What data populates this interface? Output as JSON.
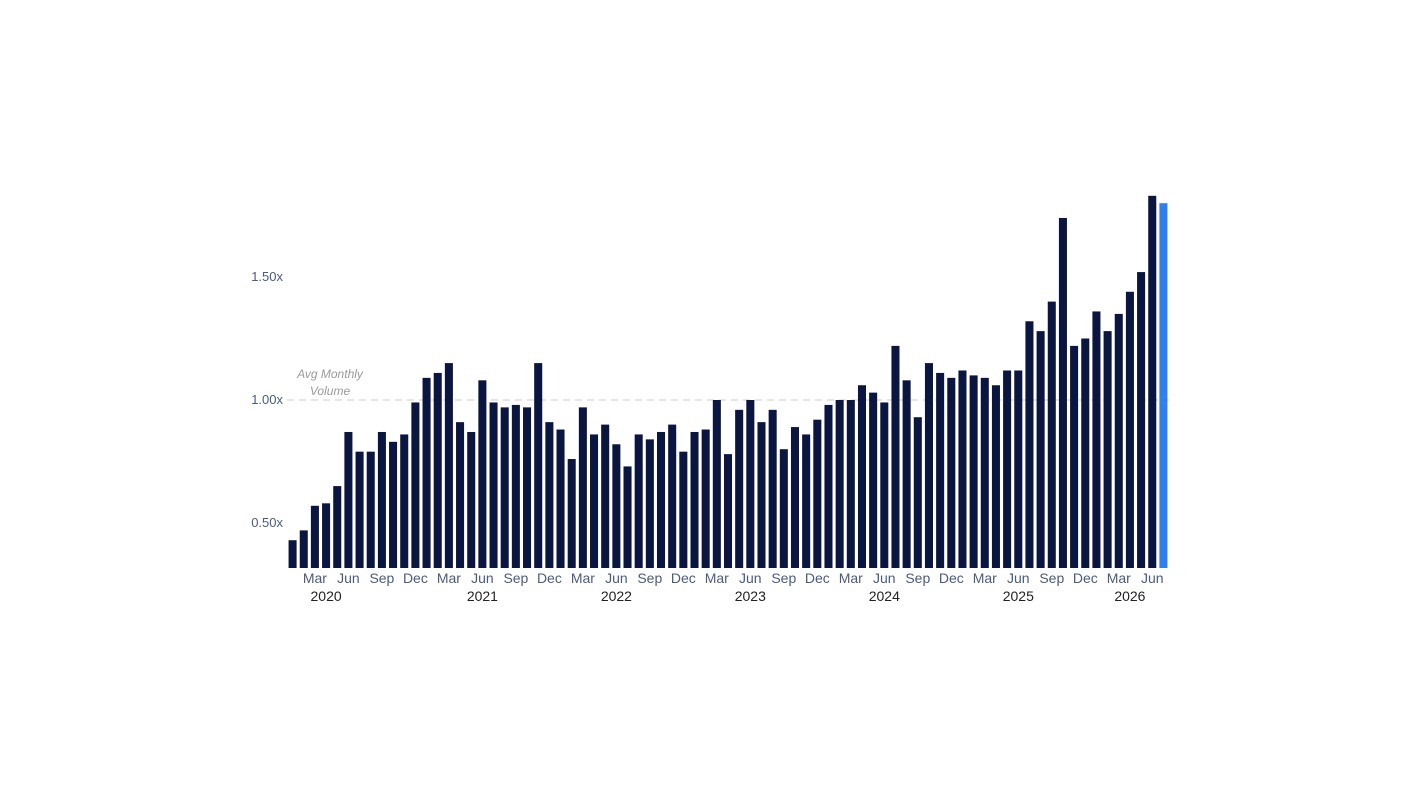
{
  "chart_data": {
    "type": "bar",
    "title": "",
    "xlabel": "",
    "ylabel": "",
    "yaxis": {
      "ticks": [
        {
          "value": 0.5,
          "label": "0.50x"
        },
        {
          "value": 1.0,
          "label": "1.00x"
        },
        {
          "value": 1.5,
          "label": "1.50x"
        }
      ],
      "range": [
        0.318,
        1.85
      ],
      "grid": false
    },
    "xaxis": {
      "month_ticks": [
        {
          "date": "2020-03",
          "label": "Mar"
        },
        {
          "date": "2020-06",
          "label": "Jun"
        },
        {
          "date": "2020-09",
          "label": "Sep"
        },
        {
          "date": "2020-12",
          "label": "Dec"
        },
        {
          "date": "2021-03",
          "label": "Mar"
        },
        {
          "date": "2021-06",
          "label": "Jun"
        },
        {
          "date": "2021-09",
          "label": "Sep"
        },
        {
          "date": "2021-12",
          "label": "Dec"
        },
        {
          "date": "2022-03",
          "label": "Mar"
        },
        {
          "date": "2022-06",
          "label": "Jun"
        },
        {
          "date": "2022-09",
          "label": "Sep"
        },
        {
          "date": "2022-12",
          "label": "Dec"
        },
        {
          "date": "2023-03",
          "label": "Mar"
        },
        {
          "date": "2023-06",
          "label": "Jun"
        },
        {
          "date": "2023-09",
          "label": "Sep"
        },
        {
          "date": "2023-12",
          "label": "Dec"
        },
        {
          "date": "2024-03",
          "label": "Mar"
        },
        {
          "date": "2024-06",
          "label": "Jun"
        },
        {
          "date": "2024-09",
          "label": "Sep"
        },
        {
          "date": "2024-12",
          "label": "Dec"
        },
        {
          "date": "2025-03",
          "label": "Mar"
        },
        {
          "date": "2025-06",
          "label": "Jun"
        },
        {
          "date": "2025-09",
          "label": "Sep"
        },
        {
          "date": "2025-12",
          "label": "Dec"
        },
        {
          "date": "2026-03",
          "label": "Mar"
        },
        {
          "date": "2026-06",
          "label": "Jun"
        }
      ],
      "year_ticks": [
        {
          "date": "2020-04",
          "label": "2020"
        },
        {
          "date": "2021-06",
          "label": "2021"
        },
        {
          "date": "2022-06",
          "label": "2022"
        },
        {
          "date": "2023-06",
          "label": "2023"
        },
        {
          "date": "2024-06",
          "label": "2024"
        },
        {
          "date": "2025-06",
          "label": "2025"
        },
        {
          "date": "2026-04",
          "label": "2026"
        }
      ]
    },
    "reference_line": {
      "value": 1.0,
      "label_line1": "Avg Monthly",
      "label_line2": "Volume",
      "style": "dashed"
    },
    "colors": {
      "bar": "#0b1640",
      "highlight": "#2f7ff0",
      "tick_text": "#4a5a80",
      "year_text": "#222222",
      "reference_line": "#d6d6d6",
      "reference_text": "#9a9a9a"
    },
    "x": [
      "2020-01",
      "2020-02",
      "2020-03",
      "2020-04",
      "2020-05",
      "2020-06",
      "2020-07",
      "2020-08",
      "2020-09",
      "2020-10",
      "2020-11",
      "2020-12",
      "2021-01",
      "2021-02",
      "2021-03",
      "2021-04",
      "2021-05",
      "2021-06",
      "2021-07",
      "2021-08",
      "2021-09",
      "2021-10",
      "2021-11",
      "2021-12",
      "2022-01",
      "2022-02",
      "2022-03",
      "2022-04",
      "2022-05",
      "2022-06",
      "2022-07",
      "2022-08",
      "2022-09",
      "2022-10",
      "2022-11",
      "2022-12",
      "2023-01",
      "2023-02",
      "2023-03",
      "2023-04",
      "2023-05",
      "2023-06",
      "2023-07",
      "2023-08",
      "2023-09",
      "2023-10",
      "2023-11",
      "2023-12",
      "2024-01",
      "2024-02",
      "2024-03",
      "2024-04",
      "2024-05",
      "2024-06",
      "2024-07",
      "2024-08",
      "2024-09",
      "2024-10",
      "2024-11",
      "2024-12",
      "2025-01",
      "2025-02",
      "2025-03",
      "2025-04",
      "2025-05",
      "2025-06",
      "2025-07",
      "2025-08",
      "2025-09",
      "2025-10",
      "2025-11",
      "2025-12",
      "2026-01",
      "2026-02",
      "2026-03",
      "2026-04",
      "2026-05",
      "2026-06",
      "2026-07"
    ],
    "values": [
      0.43,
      0.47,
      0.57,
      0.58,
      0.65,
      0.87,
      0.79,
      0.79,
      0.87,
      0.83,
      0.86,
      0.99,
      1.09,
      1.11,
      1.15,
      0.91,
      0.87,
      1.08,
      0.99,
      0.97,
      0.98,
      0.97,
      1.15,
      0.91,
      0.88,
      0.76,
      0.97,
      0.86,
      0.9,
      0.82,
      0.73,
      0.86,
      0.84,
      0.87,
      0.9,
      0.79,
      0.87,
      0.88,
      1.0,
      0.78,
      0.96,
      1.0,
      0.91,
      0.96,
      0.8,
      0.89,
      0.86,
      0.92,
      0.98,
      1.0,
      1.0,
      1.06,
      1.03,
      0.99,
      1.22,
      1.08,
      0.93,
      1.15,
      1.11,
      1.09,
      1.12,
      1.1,
      1.09,
      1.06,
      1.12,
      1.12,
      1.32,
      1.28,
      1.4,
      1.74,
      1.22,
      1.25,
      1.36,
      1.28,
      1.35,
      1.44,
      1.52,
      1.83,
      1.8
    ],
    "highlight_index": 78
  }
}
